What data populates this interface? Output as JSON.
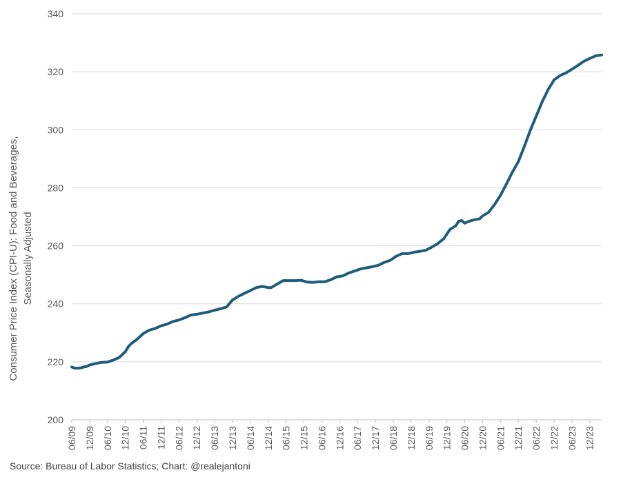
{
  "chart_data": {
    "type": "line",
    "title": "",
    "ylabel_lines": [
      "Consumer Price Index (CPI-U): Food and Beverages,",
      "Seasonally Adjusted"
    ],
    "ylim": [
      200,
      340
    ],
    "yticks": [
      200,
      220,
      240,
      260,
      280,
      300,
      320,
      340
    ],
    "xlim": [
      "2009-06",
      "2024-04"
    ],
    "xtick_labels": [
      "06/09",
      "12/09",
      "06/10",
      "12/10",
      "06/11",
      "12/11",
      "06/12",
      "12/12",
      "06/13",
      "12/13",
      "06/14",
      "12/14",
      "06/15",
      "12/15",
      "06/16",
      "12/16",
      "06/17",
      "12/17",
      "06/18",
      "12/18",
      "06/19",
      "12/19",
      "06/20",
      "12/20",
      "06/21",
      "12/21",
      "06/22",
      "12/22",
      "06/23",
      "12/23"
    ],
    "grid": "horizontal",
    "line_color": "#1F5C7A",
    "series": [
      {
        "x": [
          "2009-06",
          "2009-07",
          "2009-08",
          "2009-09",
          "2009-10",
          "2009-11",
          "2009-12",
          "2010-02",
          "2010-04",
          "2010-06",
          "2010-08",
          "2010-10",
          "2010-12",
          "2011-01",
          "2011-02",
          "2011-04",
          "2011-06",
          "2011-08",
          "2011-10",
          "2011-12",
          "2012-02",
          "2012-04",
          "2012-06",
          "2012-08",
          "2012-10",
          "2012-12",
          "2013-02",
          "2013-04",
          "2013-06",
          "2013-08",
          "2013-10",
          "2013-12",
          "2014-02",
          "2014-04",
          "2014-06",
          "2014-08",
          "2014-10",
          "2014-12",
          "2015-01",
          "2015-03",
          "2015-05",
          "2015-07",
          "2015-09",
          "2015-11",
          "2016-01",
          "2016-03",
          "2016-05",
          "2016-07",
          "2016-09",
          "2016-11",
          "2017-01",
          "2017-03",
          "2017-05",
          "2017-07",
          "2017-09",
          "2017-11",
          "2018-01",
          "2018-03",
          "2018-05",
          "2018-07",
          "2018-09",
          "2018-11",
          "2019-01",
          "2019-03",
          "2019-05",
          "2019-07",
          "2019-09",
          "2019-11",
          "2020-01",
          "2020-03",
          "2020-04",
          "2020-05",
          "2020-06",
          "2020-07",
          "2020-09",
          "2020-11",
          "2020-12",
          "2021-02",
          "2021-04",
          "2021-06",
          "2021-08",
          "2021-10",
          "2021-12",
          "2022-02",
          "2022-04",
          "2022-06",
          "2022-08",
          "2022-10",
          "2022-12",
          "2023-02",
          "2023-04",
          "2023-06",
          "2023-08",
          "2023-10",
          "2023-12",
          "2024-02",
          "2024-04"
        ],
        "y": [
          218.2,
          217.8,
          217.8,
          217.9,
          218.2,
          218.4,
          218.9,
          219.4,
          219.8,
          219.9,
          220.6,
          221.5,
          223.5,
          225.2,
          226.3,
          227.8,
          229.7,
          230.9,
          231.5,
          232.4,
          233.0,
          233.9,
          234.4,
          235.2,
          236.1,
          236.4,
          236.8,
          237.2,
          237.8,
          238.3,
          238.9,
          241.3,
          242.6,
          243.6,
          244.6,
          245.6,
          246.0,
          245.6,
          245.6,
          246.8,
          248.0,
          248.0,
          248.0,
          248.1,
          247.5,
          247.4,
          247.6,
          247.6,
          248.3,
          249.3,
          249.6,
          250.6,
          251.3,
          252.0,
          252.4,
          252.8,
          253.3,
          254.3,
          255.0,
          256.4,
          257.3,
          257.3,
          257.8,
          258.1,
          258.5,
          259.6,
          260.8,
          262.5,
          265.6,
          266.9,
          268.5,
          268.7,
          267.8,
          268.3,
          268.9,
          269.3,
          270.3,
          271.5,
          274.2,
          277.4,
          281.3,
          285.4,
          289.0,
          294.2,
          299.7,
          304.7,
          309.6,
          313.8,
          317.2,
          318.7,
          319.6,
          320.9,
          322.2,
          323.6,
          324.6,
          325.5,
          325.8
        ]
      }
    ]
  },
  "footer": {
    "source": "Source: Bureau of Labor Statistics; Chart: @realejantoni"
  }
}
